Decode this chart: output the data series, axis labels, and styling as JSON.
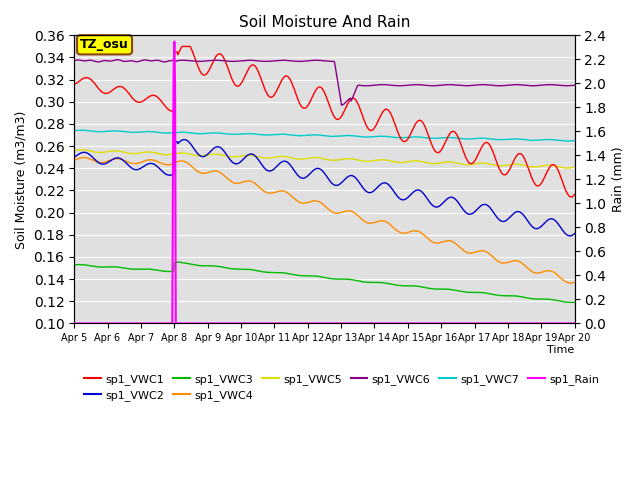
{
  "title": "Soil Moisture And Rain",
  "xlabel": "Time",
  "ylabel_left": "Soil Moisture (m3/m3)",
  "ylabel_right": "Rain (mm)",
  "annotation_text": "TZ_osu",
  "annotation_box_color": "#FFFF00",
  "annotation_border_color": "#8B4513",
  "ylim_left": [
    0.1,
    0.36
  ],
  "ylim_right": [
    0.0,
    2.4
  ],
  "x_tick_labels": [
    "Apr 5",
    "Apr 6",
    "Apr 7",
    "Apr 8",
    "Apr 9",
    "Apr 10",
    "Apr 11",
    "Apr 12",
    "Apr 13",
    "Apr 14",
    "Apr 15",
    "Apr 16",
    "Apr 17",
    "Apr 18",
    "Apr 19",
    "Apr 20"
  ],
  "background_color": "#e0e0e0",
  "colors": {
    "sp1_VWC1": "#FF0000",
    "sp1_VWC2": "#0000CC",
    "sp1_VWC3": "#00BB00",
    "sp1_VWC4": "#FF8C00",
    "sp1_VWC5": "#DDDD00",
    "sp1_VWC6": "#880088",
    "sp1_VWC7": "#00CCCC",
    "sp1_Rain": "#FF00FF"
  }
}
